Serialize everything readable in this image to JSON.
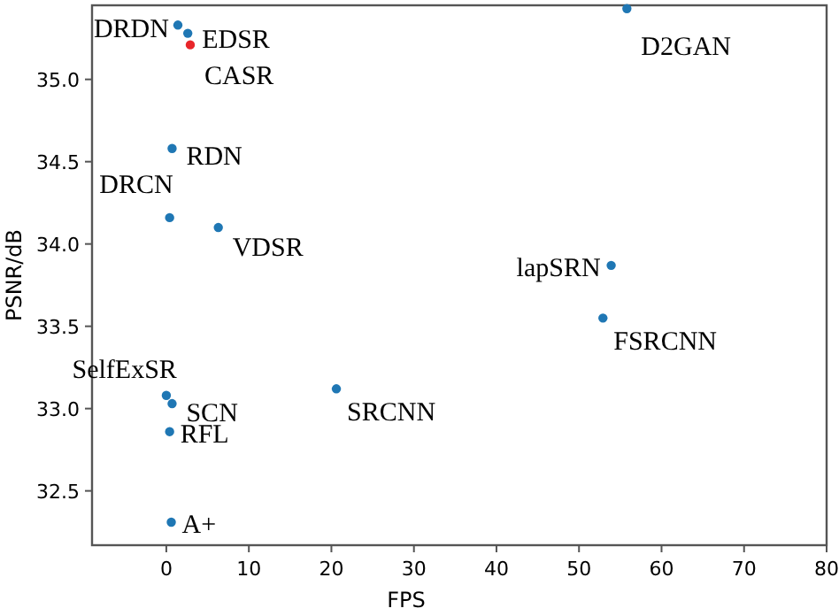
{
  "chart_data": {
    "type": "scatter",
    "xlabel": "FPS",
    "ylabel": "PSNR/dB",
    "xlim": [
      -9,
      80
    ],
    "ylim": [
      32.17,
      35.45
    ],
    "xticks": [
      0,
      10,
      20,
      30,
      40,
      50,
      60,
      70,
      80
    ],
    "yticks": [
      32.5,
      {
        "value": 33,
        "label": "33.0"
      },
      33.5,
      {
        "value": 34,
        "label": "34.0"
      },
      34.5,
      {
        "value": 35,
        "label": "35.0"
      }
    ],
    "marker": "circle",
    "grid": false,
    "series": [
      {
        "color": "#1f77b4",
        "x": [
          1.4,
          2.6,
          55.8,
          0.7,
          0.4,
          6.3,
          53.9,
          52.9,
          0,
          0.7,
          20.6,
          0.4,
          0.6
        ],
        "values": [
          35.33,
          35.28,
          35.43,
          34.58,
          34.16,
          34.1,
          33.87,
          33.55,
          33.08,
          33.03,
          33.12,
          32.86,
          32.31
        ]
      },
      {
        "color": "#e8262a",
        "x": [
          2.9
        ],
        "values": [
          35.21
        ]
      }
    ],
    "annotations": [
      {
        "text": "DRDN",
        "x": 1.4,
        "y": 35.33
      },
      {
        "text": "EDSR",
        "x": 2.6,
        "y": 35.28
      },
      {
        "text": "CASR",
        "x": 2.9,
        "y": 35.21
      },
      {
        "text": "D2GAN",
        "x": 55.8,
        "y": 35.43
      },
      {
        "text": "RDN",
        "x": 0.7,
        "y": 34.58
      },
      {
        "text": "DRCN",
        "x": 0.4,
        "y": 34.16
      },
      {
        "text": "VDSR",
        "x": 6.3,
        "y": 34.1
      },
      {
        "text": "lapSRN",
        "x": 53.9,
        "y": 33.87
      },
      {
        "text": "FSRCNN",
        "x": 52.9,
        "y": 33.55
      },
      {
        "text": "SelfExSR",
        "x": 0,
        "y": 33.08
      },
      {
        "text": "SCN",
        "x": 0.7,
        "y": 33.03
      },
      {
        "text": "SRCNN",
        "x": 20.6,
        "y": 33.12
      },
      {
        "text": "RFL",
        "x": 0.4,
        "y": 32.86
      },
      {
        "text": "A+",
        "x": 0.6,
        "y": 32.31
      }
    ]
  }
}
